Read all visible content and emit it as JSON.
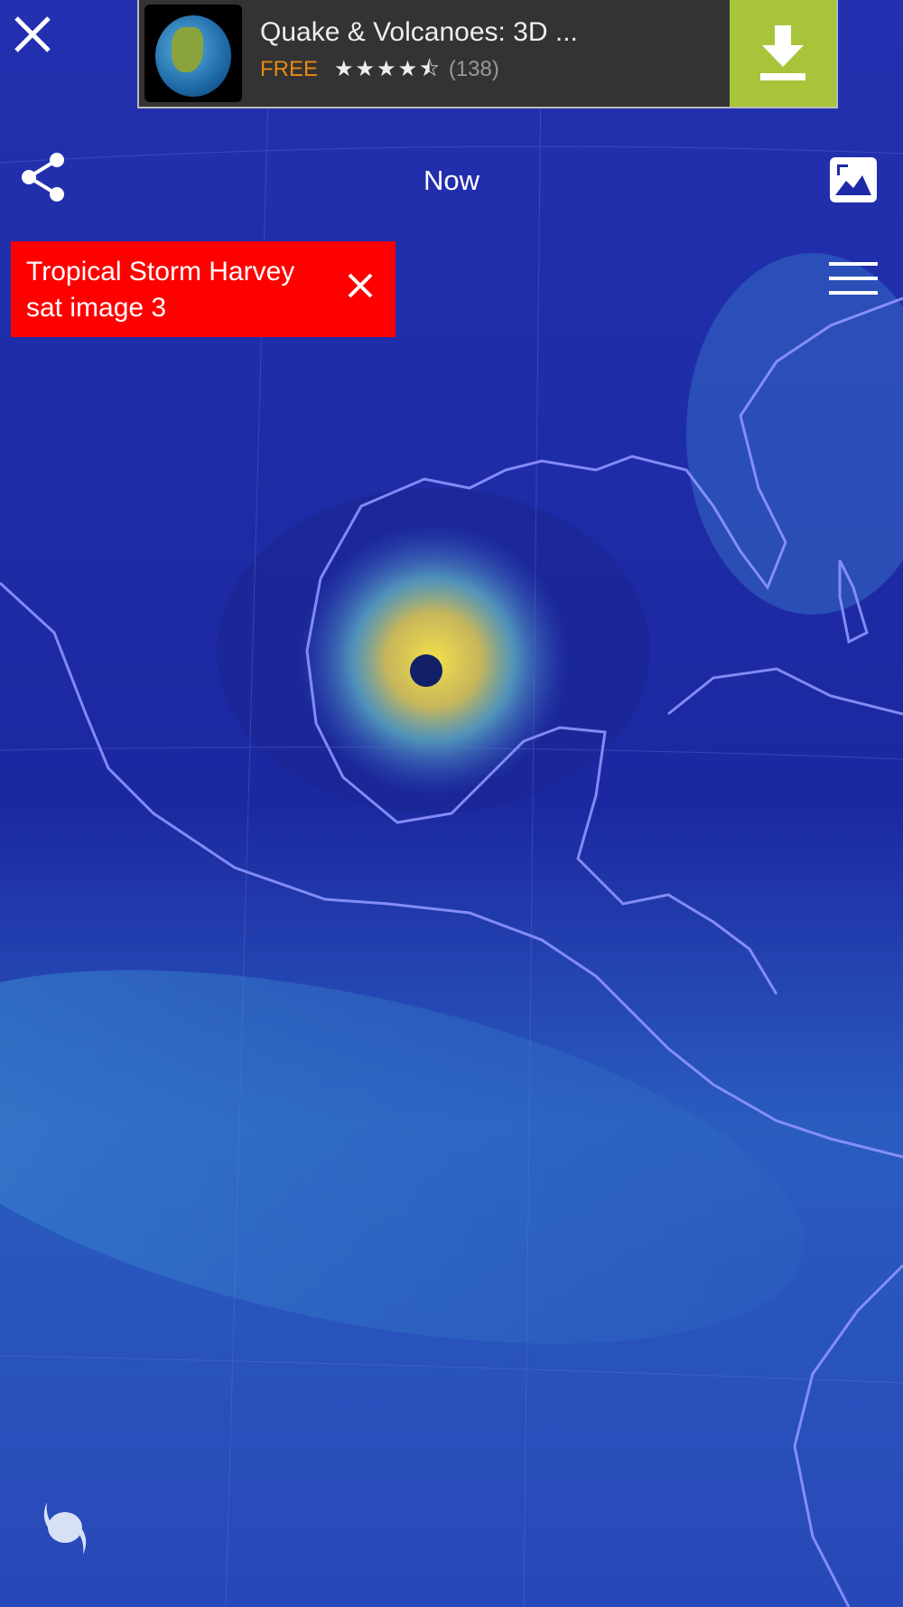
{
  "ad": {
    "title": "Quake & Volcanoes: 3D ...",
    "price": "FREE",
    "stars": "★★★★⯪",
    "rating_value": 4.5,
    "review_count": "(138)",
    "accent_color": "#a8c43a",
    "icon": "download-icon"
  },
  "top_bar": {
    "time_label": "Now",
    "left_icon": "share-icon",
    "right_icon": "image-icon",
    "close_icon": "close-icon"
  },
  "storm_banner": {
    "line1": "Tropical Storm Harvey",
    "line2": "sat image 3",
    "color": "#ff0000"
  },
  "menu_icon": "hamburger-menu-icon",
  "bottom_icon": "hurricane-icon"
}
